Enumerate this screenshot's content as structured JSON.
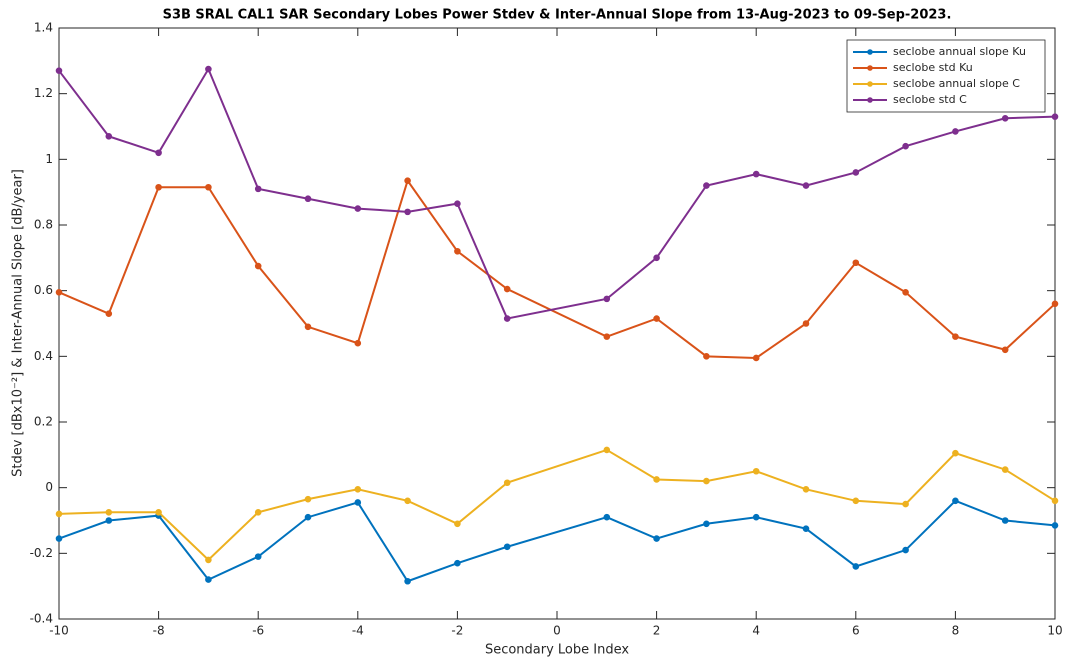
{
  "chart_data": {
    "type": "line",
    "title": "S3B SRAL CAL1 SAR Secondary Lobes Power Stdev & Inter-Annual Slope from 13-Aug-2023 to 09-Sep-2023.",
    "x_label": "Secondary Lobe Index",
    "y_label": "Stdev [dBx10⁻²] & Inter-Annual Slope [dB/year]",
    "x": [
      -10,
      -9,
      -8,
      -7,
      -6,
      -5,
      -4,
      -3,
      -2,
      -1,
      1,
      2,
      3,
      4,
      5,
      6,
      7,
      8,
      9,
      10
    ],
    "series": [
      {
        "name": "seclobe annual slope Ku",
        "color": "#0072BD",
        "values": [
          -0.155,
          -0.1,
          -0.085,
          -0.28,
          -0.21,
          -0.09,
          -0.045,
          -0.285,
          -0.23,
          -0.18,
          -0.09,
          -0.155,
          -0.11,
          -0.09,
          -0.125,
          -0.24,
          -0.19,
          -0.04,
          -0.1,
          -0.115
        ]
      },
      {
        "name": "seclobe std Ku",
        "color": "#D95319",
        "values": [
          0.595,
          0.53,
          0.915,
          0.915,
          0.675,
          0.49,
          0.44,
          0.935,
          0.72,
          0.605,
          0.46,
          0.515,
          0.4,
          0.395,
          0.5,
          0.685,
          0.595,
          0.46,
          0.42,
          0.56
        ]
      },
      {
        "name": "seclobe annual slope C",
        "color": "#EDB120",
        "values": [
          -0.08,
          -0.075,
          -0.075,
          -0.22,
          -0.075,
          -0.035,
          -0.005,
          -0.04,
          -0.11,
          0.015,
          0.115,
          0.025,
          0.02,
          0.05,
          -0.005,
          -0.04,
          -0.05,
          0.105,
          0.055,
          -0.04
        ]
      },
      {
        "name": "seclobe std C",
        "color": "#7E2F8E",
        "values": [
          1.27,
          1.07,
          1.02,
          1.275,
          0.91,
          0.88,
          0.85,
          0.84,
          0.865,
          0.515,
          0.575,
          0.7,
          0.92,
          0.955,
          0.92,
          0.96,
          1.04,
          1.085,
          1.125,
          1.13
        ]
      }
    ],
    "xlim": [
      -10,
      10
    ],
    "xticks": [
      -10,
      -8,
      -6,
      -4,
      -2,
      0,
      2,
      4,
      6,
      8,
      10
    ],
    "ylim": [
      -0.4,
      1.4
    ],
    "yticks": [
      -0.4,
      -0.2,
      0,
      0.2,
      0.4,
      0.6,
      0.8,
      1,
      1.2,
      1.4
    ],
    "grid": false,
    "legend_position": "upper-right"
  }
}
